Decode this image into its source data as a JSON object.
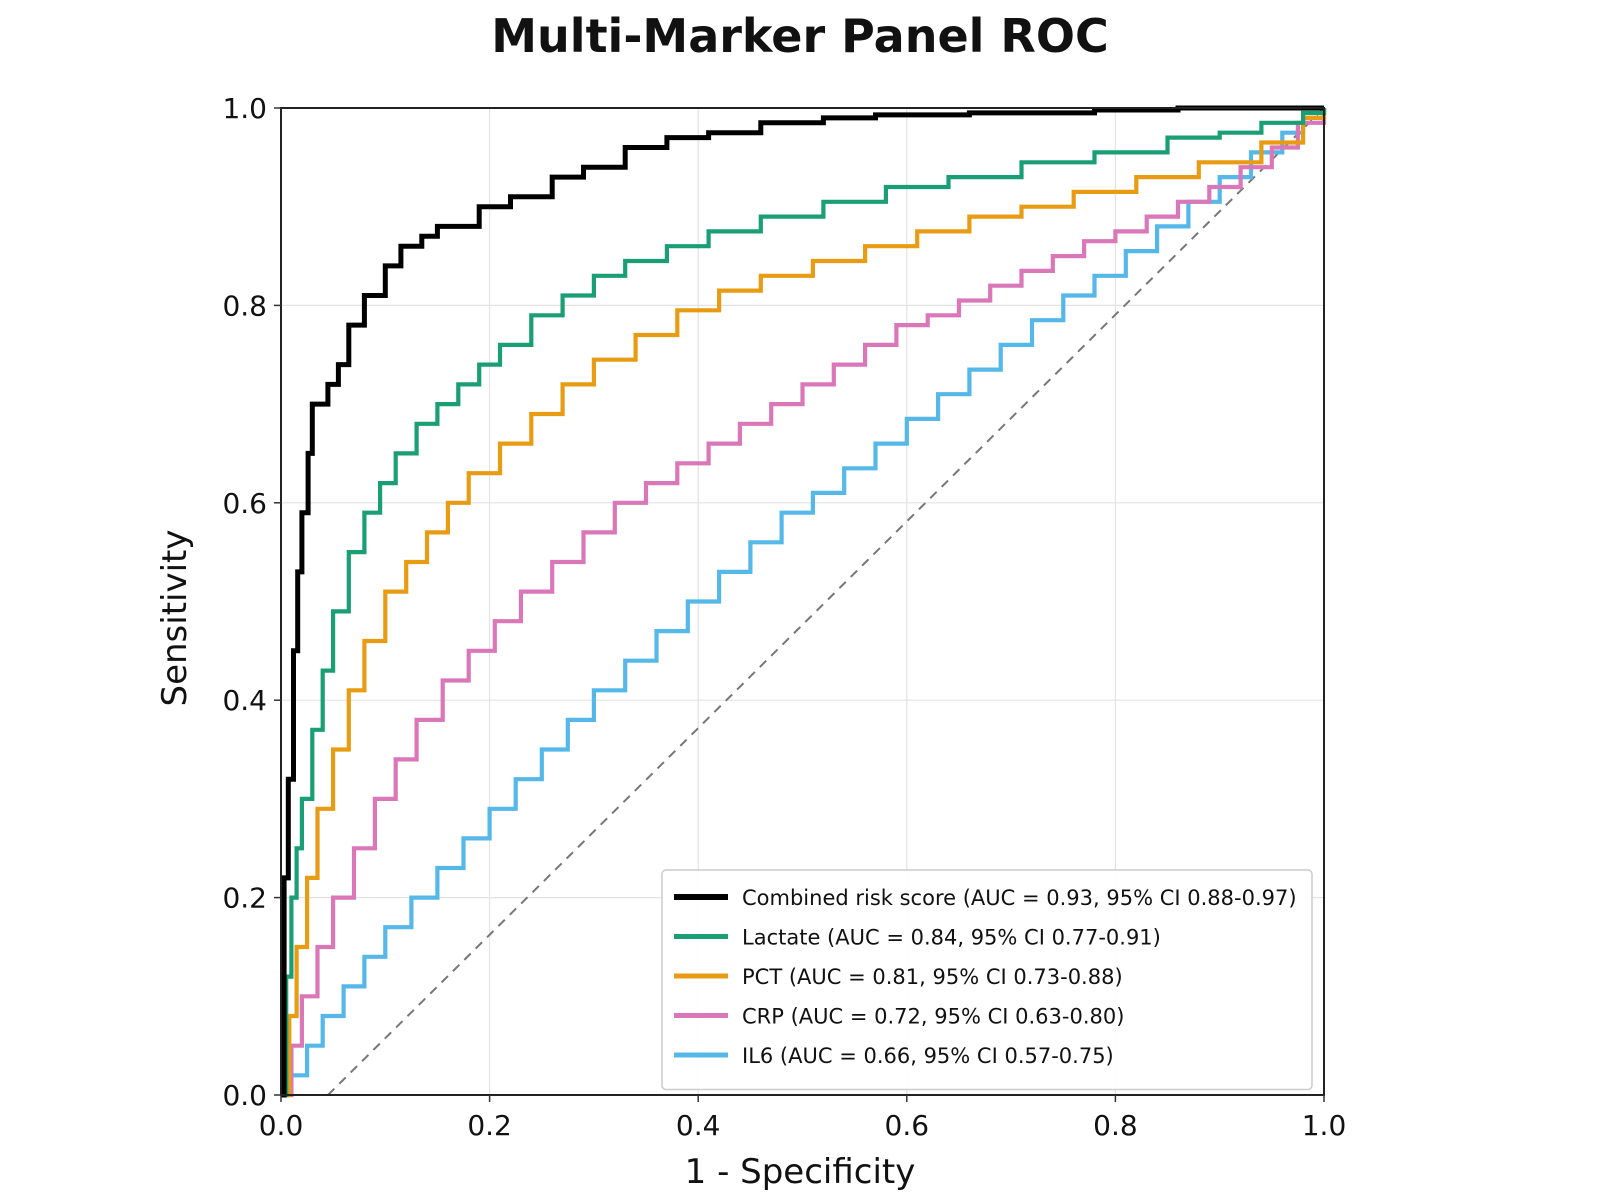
{
  "chart_data": {
    "type": "line",
    "title": "Multi-Marker Panel ROC",
    "xlabel": "1 - Specificity",
    "ylabel": "Sensitivity",
    "xlim": [
      0,
      1
    ],
    "ylim": [
      0,
      1
    ],
    "xticks": [
      "0.0",
      "0.2",
      "0.4",
      "0.6",
      "0.8",
      "1.0"
    ],
    "yticks": [
      "0.0",
      "0.2",
      "0.4",
      "0.6",
      "0.8",
      "1.0"
    ],
    "grid": true,
    "legend_position": "lower-right",
    "reference_line": {
      "x": [
        0.045,
        1.0
      ],
      "y": [
        0.0,
        1.0
      ],
      "style": "dashed",
      "color": "#777777"
    },
    "series": [
      {
        "name": "Combined risk score (AUC = 0.93, 95% CI 0.88-0.97)",
        "color": "#000000",
        "x": [
          0.0,
          0.003,
          0.007,
          0.012,
          0.016,
          0.02,
          0.026,
          0.03,
          0.045,
          0.055,
          0.065,
          0.08,
          0.1,
          0.115,
          0.135,
          0.15,
          0.19,
          0.22,
          0.26,
          0.29,
          0.33,
          0.37,
          0.41,
          0.46,
          0.52,
          0.57,
          0.66,
          0.78,
          0.86,
          0.92,
          1.0
        ],
        "y": [
          0.0,
          0.22,
          0.32,
          0.45,
          0.53,
          0.59,
          0.65,
          0.7,
          0.72,
          0.74,
          0.78,
          0.81,
          0.84,
          0.86,
          0.87,
          0.88,
          0.9,
          0.91,
          0.93,
          0.94,
          0.96,
          0.97,
          0.975,
          0.985,
          0.99,
          0.993,
          0.995,
          0.998,
          1.0,
          1.0,
          1.0
        ]
      },
      {
        "name": "Lactate (AUC = 0.84, 95% CI 0.77-0.91)",
        "color": "#1a9e73",
        "x": [
          0.0,
          0.005,
          0.01,
          0.015,
          0.02,
          0.03,
          0.04,
          0.05,
          0.065,
          0.08,
          0.095,
          0.11,
          0.13,
          0.15,
          0.17,
          0.19,
          0.21,
          0.24,
          0.27,
          0.3,
          0.33,
          0.37,
          0.41,
          0.46,
          0.52,
          0.58,
          0.64,
          0.71,
          0.78,
          0.85,
          0.9,
          0.94,
          0.98,
          1.0
        ],
        "y": [
          0.0,
          0.12,
          0.2,
          0.25,
          0.3,
          0.37,
          0.43,
          0.49,
          0.55,
          0.59,
          0.62,
          0.65,
          0.68,
          0.7,
          0.72,
          0.74,
          0.76,
          0.79,
          0.81,
          0.83,
          0.845,
          0.86,
          0.875,
          0.89,
          0.905,
          0.92,
          0.93,
          0.945,
          0.955,
          0.97,
          0.975,
          0.985,
          0.995,
          1.0
        ]
      },
      {
        "name": "PCT (AUC = 0.81, 95% CI 0.73-0.88)",
        "color": "#e79c13",
        "x": [
          0.0,
          0.008,
          0.015,
          0.025,
          0.035,
          0.05,
          0.065,
          0.08,
          0.1,
          0.12,
          0.14,
          0.16,
          0.18,
          0.21,
          0.24,
          0.27,
          0.3,
          0.34,
          0.38,
          0.42,
          0.46,
          0.51,
          0.56,
          0.61,
          0.66,
          0.71,
          0.76,
          0.82,
          0.88,
          0.94,
          0.98,
          1.0
        ],
        "y": [
          0.0,
          0.08,
          0.15,
          0.22,
          0.29,
          0.35,
          0.41,
          0.46,
          0.51,
          0.54,
          0.57,
          0.6,
          0.63,
          0.66,
          0.69,
          0.72,
          0.745,
          0.77,
          0.795,
          0.815,
          0.83,
          0.845,
          0.86,
          0.875,
          0.89,
          0.9,
          0.915,
          0.93,
          0.945,
          0.965,
          0.99,
          1.0
        ]
      },
      {
        "name": "CRP (AUC = 0.72, 95% CI 0.63-0.80)",
        "color": "#d977b8",
        "x": [
          0.0,
          0.01,
          0.02,
          0.035,
          0.05,
          0.07,
          0.09,
          0.11,
          0.13,
          0.155,
          0.18,
          0.205,
          0.23,
          0.26,
          0.29,
          0.32,
          0.35,
          0.38,
          0.41,
          0.44,
          0.47,
          0.5,
          0.53,
          0.56,
          0.59,
          0.62,
          0.65,
          0.68,
          0.71,
          0.74,
          0.77,
          0.8,
          0.83,
          0.86,
          0.89,
          0.92,
          0.95,
          0.975,
          1.0
        ],
        "y": [
          0.0,
          0.05,
          0.1,
          0.15,
          0.2,
          0.25,
          0.3,
          0.34,
          0.38,
          0.42,
          0.45,
          0.48,
          0.51,
          0.54,
          0.57,
          0.6,
          0.62,
          0.64,
          0.66,
          0.68,
          0.7,
          0.72,
          0.74,
          0.76,
          0.78,
          0.79,
          0.805,
          0.82,
          0.835,
          0.85,
          0.865,
          0.875,
          0.89,
          0.905,
          0.92,
          0.94,
          0.96,
          0.985,
          1.0
        ]
      },
      {
        "name": "IL6 (AUC = 0.66, 95% CI 0.57-0.75)",
        "color": "#55b8e8",
        "x": [
          0.0,
          0.01,
          0.025,
          0.04,
          0.06,
          0.08,
          0.1,
          0.125,
          0.15,
          0.175,
          0.2,
          0.225,
          0.25,
          0.275,
          0.3,
          0.33,
          0.36,
          0.39,
          0.42,
          0.45,
          0.48,
          0.51,
          0.54,
          0.57,
          0.6,
          0.63,
          0.66,
          0.69,
          0.72,
          0.75,
          0.78,
          0.81,
          0.84,
          0.87,
          0.9,
          0.93,
          0.96,
          0.98,
          1.0
        ],
        "y": [
          0.0,
          0.02,
          0.05,
          0.08,
          0.11,
          0.14,
          0.17,
          0.2,
          0.23,
          0.26,
          0.29,
          0.32,
          0.35,
          0.38,
          0.41,
          0.44,
          0.47,
          0.5,
          0.53,
          0.56,
          0.59,
          0.61,
          0.635,
          0.66,
          0.685,
          0.71,
          0.735,
          0.76,
          0.785,
          0.81,
          0.83,
          0.855,
          0.88,
          0.905,
          0.93,
          0.955,
          0.975,
          0.99,
          1.0
        ]
      }
    ]
  }
}
